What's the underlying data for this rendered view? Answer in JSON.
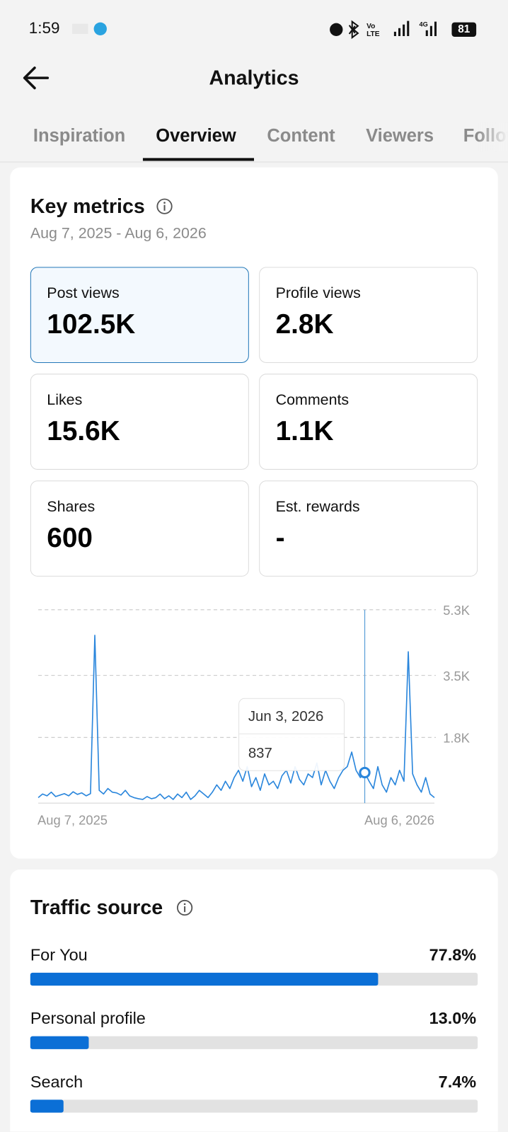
{
  "status_bar": {
    "time": "1:59",
    "battery": "81"
  },
  "header": {
    "title": "Analytics"
  },
  "tabs": [
    "Inspiration",
    "Overview",
    "Content",
    "Viewers",
    "Followers"
  ],
  "key_metrics": {
    "title": "Key metrics",
    "date_range": "Aug 7, 2025 - Aug 6, 2026",
    "metrics": [
      {
        "label": "Post views",
        "value": "102.5K"
      },
      {
        "label": "Profile views",
        "value": "2.8K"
      },
      {
        "label": "Likes",
        "value": "15.6K"
      },
      {
        "label": "Comments",
        "value": "1.1K"
      },
      {
        "label": "Shares",
        "value": "600"
      },
      {
        "label": "Est. rewards",
        "value": "-"
      }
    ]
  },
  "chart_data": {
    "type": "line",
    "x_labels": [
      "Aug 7, 2025",
      "Aug 6, 2026"
    ],
    "color": "#2a86dc",
    "values": [
      150,
      250,
      200,
      300,
      180,
      220,
      260,
      200,
      310,
      240,
      280,
      200,
      260,
      4600,
      350,
      250,
      400,
      300,
      280,
      220,
      350,
      200,
      150,
      120,
      100,
      180,
      120,
      150,
      250,
      120,
      200,
      100,
      250,
      150,
      300,
      100,
      200,
      350,
      250,
      150,
      300,
      500,
      350,
      600,
      400,
      700,
      900,
      600,
      1000,
      450,
      700,
      350,
      800,
      500,
      600,
      400,
      750,
      900,
      550,
      1000,
      650,
      500,
      800,
      700,
      1100,
      500,
      900,
      600,
      400,
      700,
      900,
      1000,
      1400,
      900,
      700,
      837,
      600,
      400,
      1000,
      500,
      300,
      700,
      500,
      900,
      600,
      4150,
      800,
      500,
      300,
      700,
      250,
      150
    ],
    "ylim": [
      0,
      5300
    ],
    "yticks": [
      {
        "value": 1800,
        "label": "1.8K"
      },
      {
        "value": 3500,
        "label": "3.5K"
      },
      {
        "value": 5300,
        "label": "5.3K"
      }
    ],
    "grid": true,
    "tooltip": {
      "date": "Jun 3, 2026",
      "value": 837
    }
  },
  "traffic_source": {
    "title": "Traffic source",
    "xlim": [
      0,
      100
    ],
    "items": [
      {
        "name": "For You",
        "value": 77.8,
        "value_label": "77.8%"
      },
      {
        "name": "Personal profile",
        "value": 13.0,
        "value_label": "13.0%"
      },
      {
        "name": "Search",
        "value": 7.4,
        "value_label": "7.4%"
      }
    ]
  }
}
